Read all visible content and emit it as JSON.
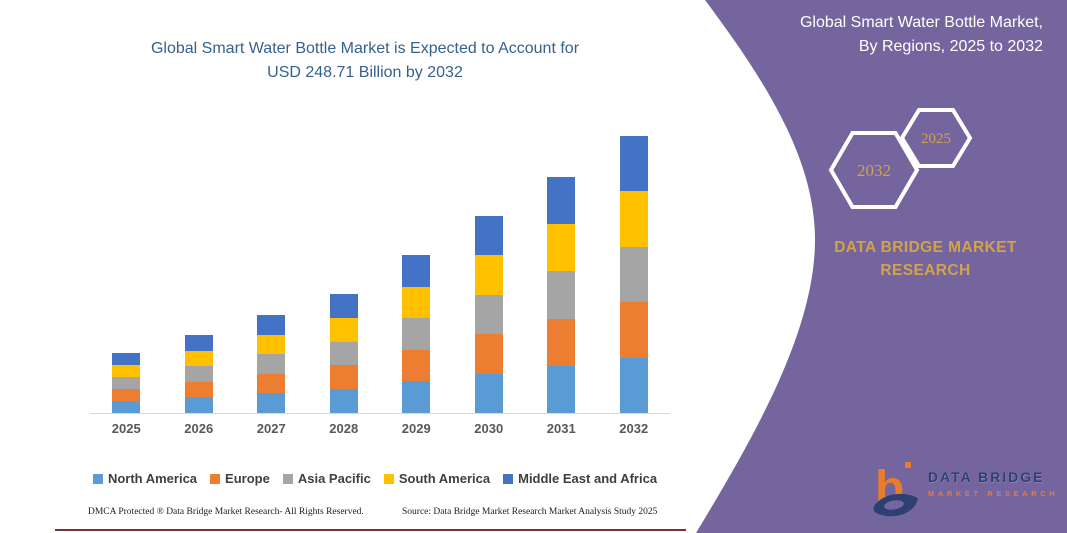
{
  "chart": {
    "title_line1": "Global Smart Water Bottle Market is Expected to Account for",
    "title_line2": "USD 248.71 Billion by 2032"
  },
  "chart_data": {
    "type": "bar",
    "stacked": true,
    "title": "Global Smart Water Bottle Market is Expected to Account for USD 248.71 Billion by 2032",
    "units": "USD Billion",
    "categories": [
      "2025",
      "2026",
      "2027",
      "2028",
      "2029",
      "2030",
      "2031",
      "2032"
    ],
    "series": [
      {
        "name": "North America",
        "color": "#5B9BD5",
        "values": [
          10.8,
          14.0,
          17.6,
          21.4,
          28.4,
          35.4,
          42.4,
          49.7
        ]
      },
      {
        "name": "Europe",
        "color": "#ED7D31",
        "values": [
          10.8,
          14.0,
          17.6,
          21.4,
          28.4,
          35.4,
          42.4,
          49.7
        ]
      },
      {
        "name": "Asia Pacific",
        "color": "#A5A5A5",
        "values": [
          10.8,
          14.0,
          17.6,
          21.4,
          28.4,
          35.4,
          42.4,
          49.7
        ]
      },
      {
        "name": "South America",
        "color": "#FFC000",
        "values": [
          10.8,
          14.0,
          17.6,
          21.4,
          28.4,
          35.4,
          42.4,
          49.7
        ]
      },
      {
        "name": "Middle East and Africa",
        "color": "#4472C4",
        "values": [
          10.8,
          14.0,
          17.6,
          21.4,
          28.4,
          35.4,
          42.4,
          49.91
        ]
      }
    ],
    "totals_estimated": [
      54.0,
      70.0,
      88.0,
      107.0,
      142.0,
      177.0,
      212.0,
      248.71
    ],
    "stated_final_value": 248.71,
    "xlabel": "",
    "ylabel": "",
    "grid": false,
    "legend_position": "bottom"
  },
  "colors": {
    "title": "#36618E",
    "axis_labels": "#595959",
    "legend_text": "#3F3F3F",
    "divider": "#7A3333",
    "logo_navy": "#2B3E72",
    "logo_orange": "#F07E26"
  },
  "panel": {
    "color": "#75659E",
    "gold": "#D1A349",
    "title_line1": "Global Smart Water Bottle Market,",
    "title_line2": "By Regions, 2025 to 2032",
    "hexagons": [
      {
        "label": "2032"
      },
      {
        "label": "2025"
      }
    ],
    "brand_line1": "DATA BRIDGE MARKET",
    "brand_line2": "RESEARCH",
    "logo": {
      "title": "DATA BRIDGE",
      "subtitle": "MARKET RESEARCH"
    }
  },
  "footer": {
    "left": "DMCA Protected ® Data Bridge Market Research-  All Rights Reserved.",
    "right": "Source: Data Bridge Market Research  Market Analysis Study 2025"
  }
}
